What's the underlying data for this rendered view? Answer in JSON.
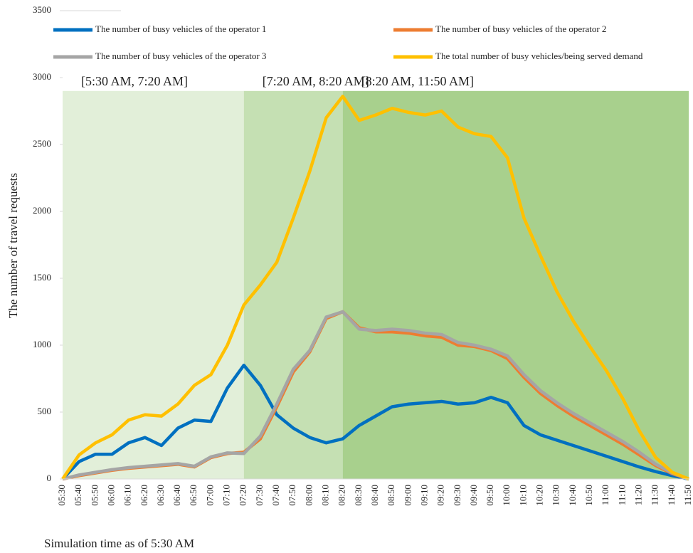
{
  "chart_data": {
    "type": "line",
    "y_label": "The number of travel requests",
    "x_label": "Simulation time as of 5:30 AM",
    "categories": [
      "05:30",
      "05:40",
      "05:50",
      "06:00",
      "06:10",
      "06:20",
      "06:30",
      "06:40",
      "06:50",
      "07:00",
      "07:10",
      "07:20",
      "07:30",
      "07:40",
      "07:50",
      "08:00",
      "08:10",
      "08:20",
      "08:30",
      "08:40",
      "08:50",
      "09:00",
      "09:10",
      "09:20",
      "09:30",
      "09:40",
      "09:50",
      "10:00",
      "10:10",
      "10:20",
      "10:30",
      "10:40",
      "10:50",
      "11:00",
      "11:10",
      "11:20",
      "11:30",
      "11:40",
      "11:50"
    ],
    "ylim": [
      0,
      3500
    ],
    "yticks": [
      0,
      500,
      1000,
      1500,
      2000,
      2500,
      3000,
      3500
    ],
    "regions": [
      {
        "label": "[5:30 AM, 7:20 AM]",
        "start": "05:30",
        "end": "07:20",
        "color": "#e2efd9"
      },
      {
        "label": "[7:20 AM, 8:20 AM]",
        "start": "07:20",
        "end": "08:20",
        "color": "#c5e0b3"
      },
      {
        "label": "[8:20 AM, 11:50 AM]",
        "start": "08:20",
        "end": "11:50",
        "color": "#a8d08d"
      }
    ],
    "region_top": 2900,
    "series": [
      {
        "name": "The number of busy vehicles of the operator 1",
        "color": "#0070c0",
        "values": [
          0,
          130,
          185,
          185,
          270,
          310,
          250,
          380,
          440,
          430,
          680,
          850,
          700,
          480,
          380,
          310,
          270,
          300,
          400,
          470,
          540,
          560,
          570,
          580,
          560,
          570,
          610,
          570,
          400,
          330,
          290,
          250,
          210,
          170,
          130,
          90,
          55,
          25,
          0
        ]
      },
      {
        "name": "The number of busy vehicles of the operator 2",
        "color": "#ed7d31",
        "values": [
          0,
          25,
          45,
          65,
          80,
          90,
          100,
          110,
          90,
          160,
          190,
          200,
          300,
          540,
          800,
          950,
          1200,
          1250,
          1130,
          1100,
          1100,
          1090,
          1070,
          1060,
          1000,
          990,
          960,
          900,
          760,
          640,
          550,
          470,
          400,
          330,
          260,
          180,
          100,
          40,
          0
        ]
      },
      {
        "name": "The number of busy vehicles of the operator 3",
        "color": "#a5a5a5",
        "values": [
          0,
          30,
          50,
          70,
          85,
          95,
          105,
          115,
          95,
          165,
          195,
          190,
          320,
          560,
          820,
          960,
          1210,
          1250,
          1120,
          1110,
          1120,
          1110,
          1090,
          1080,
          1020,
          1000,
          970,
          920,
          780,
          660,
          570,
          490,
          420,
          350,
          280,
          200,
          110,
          45,
          0
        ]
      },
      {
        "name": "The total number of busy vehicles/being served demand",
        "color": "#ffc000",
        "values": [
          0,
          180,
          270,
          330,
          440,
          480,
          470,
          560,
          700,
          780,
          1000,
          1300,
          1450,
          1620,
          1950,
          2300,
          2700,
          2860,
          2680,
          2720,
          2770,
          2740,
          2720,
          2750,
          2630,
          2580,
          2560,
          2400,
          1950,
          1670,
          1400,
          1180,
          990,
          810,
          600,
          360,
          160,
          50,
          0
        ]
      }
    ]
  }
}
